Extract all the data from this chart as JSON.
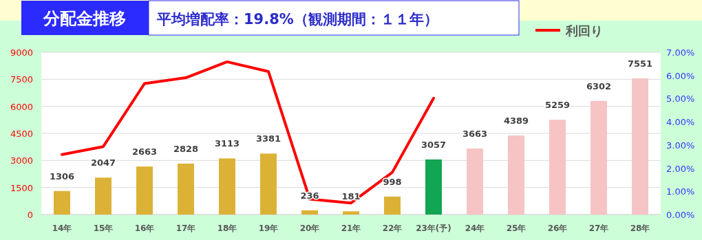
{
  "chart_data": {
    "type": "bar",
    "title": "分配金推移",
    "subtitle": "平均増配率：19.8%（観測期間：１１年）",
    "categories": [
      "14年",
      "15年",
      "16年",
      "17年",
      "18年",
      "19年",
      "20年",
      "21年",
      "22年",
      "23年(予)",
      "24年",
      "25年",
      "26年",
      "27年",
      "28年"
    ],
    "series": [
      {
        "values": [
          1306,
          2047,
          2663,
          2828,
          3113,
          3381,
          236,
          181,
          998,
          3057,
          3663,
          4389,
          5259,
          6302,
          7551
        ],
        "colors": [
          "#dcb236",
          "#dcb236",
          "#dcb236",
          "#dcb236",
          "#dcb236",
          "#dcb236",
          "#dcb236",
          "#dcb236",
          "#dcb236",
          "#12a552",
          "#f6c4c4",
          "#f6c4c4",
          "#f6c4c4",
          "#f6c4c4",
          "#f6c4c4"
        ],
        "value_labels": [
          "1306",
          "2047",
          "2663",
          "2828",
          "3113",
          "3381",
          "236",
          "181",
          "998",
          "3057",
          "3663",
          "4389",
          "5259",
          "6302",
          "7551"
        ]
      },
      {
        "type": "line",
        "name": "利回り",
        "color": "#ff0000",
        "axis": "y2",
        "values": [
          2.59,
          2.93,
          5.65,
          5.9,
          6.59,
          6.17,
          0.67,
          0.5,
          1.82,
          5.02,
          null,
          null,
          null,
          null,
          null
        ]
      }
    ],
    "ylim": [
      0,
      9000
    ],
    "yticks": [
      0,
      1500,
      3000,
      4500,
      6000,
      7500,
      9000
    ],
    "y2lim": [
      0,
      7
    ],
    "y2ticks": [
      {
        "value": 0,
        "label": "0.00%"
      },
      {
        "value": 1,
        "label": "1.00%"
      },
      {
        "value": 2,
        "label": "2.00%"
      },
      {
        "value": 3,
        "label": "3.00%"
      },
      {
        "value": 4,
        "label": "4.00%"
      },
      {
        "value": 5,
        "label": "5.00%"
      },
      {
        "value": 6,
        "label": "6.00%"
      },
      {
        "value": 7,
        "label": "7.00%"
      }
    ],
    "grid": "y",
    "legend": "top right"
  }
}
